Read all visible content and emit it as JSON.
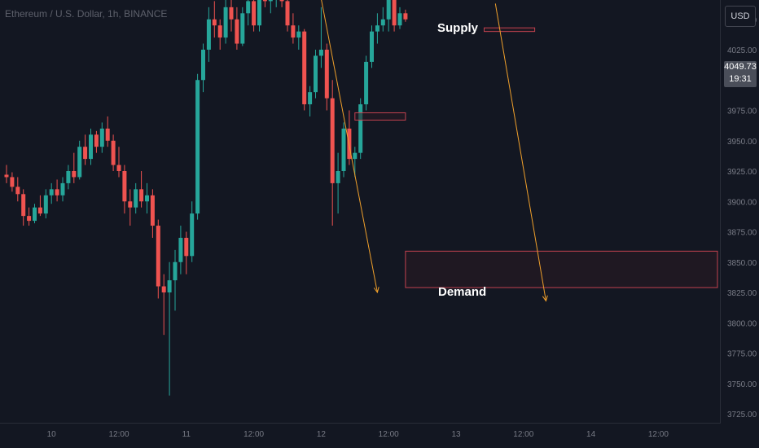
{
  "header": {
    "symbol_title": "Ethereum / U.S. Dollar, 1h, BINANCE",
    "currency_button": "USD"
  },
  "price_badge": {
    "price": "4049.73",
    "countdown": "19:31"
  },
  "zones": {
    "supply_label": "Supply",
    "demand_label": "Demand"
  },
  "colors": {
    "background": "#131722",
    "up": "#26a69a",
    "down": "#ef5350",
    "zone_border": "#c2424f",
    "zone_fill": "#2a1a22",
    "arrow": "#f0a02b",
    "grid": "#1e222d",
    "axis_text": "#787b86"
  },
  "chart_data": {
    "type": "candlestick",
    "symbol": "ETHUSD",
    "timeframe": "1h",
    "exchange": "BINANCE",
    "y_ticks": [
      3725,
      3750,
      3775,
      3800,
      3825,
      3850,
      3875,
      3900,
      3925,
      3950,
      3975,
      4000,
      4025,
      4050,
      4075
    ],
    "y_tick_labels": [
      "3725.00",
      "3750.00",
      "3775.00",
      "3800.00",
      "3825.00",
      "3850.00",
      "3875.00",
      "3900.00",
      "3925.00",
      "3950.00",
      "3975.00",
      "4000.00",
      "4025.00",
      "4050.00",
      "4075.00"
    ],
    "x_tick_labels": [
      "10",
      "12:00",
      "11",
      "12:00",
      "12",
      "12:00",
      "13",
      "12:00",
      "14",
      "12:00"
    ],
    "x_tick_bars": [
      8,
      20,
      32,
      44,
      56,
      68,
      80,
      92,
      104,
      116
    ],
    "grid": false,
    "last_price": 4049.73,
    "candles": [
      [
        3922,
        3930,
        3915,
        3920
      ],
      [
        3920,
        3924,
        3908,
        3912
      ],
      [
        3912,
        3920,
        3900,
        3906
      ],
      [
        3906,
        3910,
        3880,
        3888
      ],
      [
        3888,
        3895,
        3880,
        3884
      ],
      [
        3884,
        3898,
        3882,
        3895
      ],
      [
        3895,
        3905,
        3888,
        3890
      ],
      [
        3890,
        3910,
        3886,
        3905
      ],
      [
        3905,
        3915,
        3898,
        3910
      ],
      [
        3910,
        3918,
        3900,
        3905
      ],
      [
        3905,
        3920,
        3900,
        3915
      ],
      [
        3915,
        3930,
        3910,
        3925
      ],
      [
        3925,
        3940,
        3915,
        3920
      ],
      [
        3920,
        3950,
        3918,
        3945
      ],
      [
        3945,
        3955,
        3930,
        3935
      ],
      [
        3935,
        3960,
        3930,
        3955
      ],
      [
        3955,
        3958,
        3940,
        3945
      ],
      [
        3945,
        3965,
        3940,
        3960
      ],
      [
        3960,
        3970,
        3945,
        3950
      ],
      [
        3950,
        3955,
        3925,
        3930
      ],
      [
        3930,
        3945,
        3920,
        3925
      ],
      [
        3925,
        3930,
        3890,
        3900
      ],
      [
        3900,
        3910,
        3880,
        3895
      ],
      [
        3895,
        3915,
        3890,
        3910
      ],
      [
        3910,
        3925,
        3895,
        3900
      ],
      [
        3900,
        3915,
        3890,
        3905
      ],
      [
        3905,
        3910,
        3870,
        3880
      ],
      [
        3880,
        3885,
        3820,
        3830
      ],
      [
        3830,
        3840,
        3790,
        3825
      ],
      [
        3825,
        3850,
        3740,
        3835
      ],
      [
        3835,
        3860,
        3810,
        3850
      ],
      [
        3850,
        3880,
        3840,
        3870
      ],
      [
        3870,
        3875,
        3840,
        3855
      ],
      [
        3855,
        3900,
        3850,
        3890
      ],
      [
        3890,
        4005,
        3885,
        4000
      ],
      [
        4000,
        4030,
        3990,
        4025
      ],
      [
        4025,
        4060,
        4015,
        4050
      ],
      [
        4050,
        4065,
        4035,
        4045
      ],
      [
        4045,
        4050,
        4025,
        4035
      ],
      [
        4035,
        4070,
        4030,
        4060
      ],
      [
        4060,
        4070,
        4040,
        4050
      ],
      [
        4050,
        4060,
        4025,
        4030
      ],
      [
        4030,
        4060,
        4028,
        4055
      ],
      [
        4055,
        4075,
        4045,
        4065
      ],
      [
        4065,
        4070,
        4040,
        4045
      ],
      [
        4045,
        4080,
        4040,
        4070
      ],
      [
        4070,
        4078,
        4060,
        4065
      ],
      [
        4065,
        4075,
        4055,
        4070
      ],
      [
        4070,
        4080,
        4060,
        4072
      ],
      [
        4072,
        4075,
        4060,
        4065
      ],
      [
        4065,
        4070,
        4040,
        4045
      ],
      [
        4045,
        4055,
        4030,
        4035
      ],
      [
        4035,
        4045,
        4025,
        4040
      ],
      [
        4040,
        4042,
        3975,
        3980
      ],
      [
        3980,
        3995,
        3970,
        3990
      ],
      [
        3990,
        4025,
        3985,
        4020
      ],
      [
        4020,
        4060,
        4010,
        4025
      ],
      [
        4025,
        4030,
        3975,
        3985
      ],
      [
        3985,
        4000,
        3880,
        3915
      ],
      [
        3915,
        3940,
        3890,
        3925
      ],
      [
        3925,
        3965,
        3920,
        3960
      ],
      [
        3960,
        3975,
        3930,
        3935
      ],
      [
        3935,
        3945,
        3920,
        3940
      ],
      [
        3940,
        3985,
        3935,
        3980
      ],
      [
        3980,
        4020,
        3975,
        4015
      ],
      [
        4015,
        4045,
        4010,
        4040
      ],
      [
        4040,
        4055,
        4030,
        4045
      ],
      [
        4045,
        4060,
        4040,
        4050
      ],
      [
        4050,
        4075,
        4040,
        4070
      ],
      [
        4070,
        4072,
        4040,
        4045
      ],
      [
        4045,
        4060,
        4042,
        4055
      ],
      [
        4055,
        4058,
        4048,
        4050
      ]
    ],
    "zones": [
      {
        "name": "Supply",
        "start_bar": 56,
        "end_bar": 127,
        "top": 4083,
        "bottom": 4074
      },
      {
        "name": "Demand",
        "start_bar": 71,
        "end_bar": 127,
        "top": 3859,
        "bottom": 3829
      },
      {
        "name": "",
        "start_bar": 62,
        "end_bar": 71,
        "top": 3973,
        "bottom": 3967
      },
      {
        "name": "",
        "start_bar": 85,
        "end_bar": 94,
        "top": 4043,
        "bottom": 4040
      }
    ],
    "projection_arrows": [
      {
        "from_bar": 55.5,
        "from_price": 4079,
        "to_bar": 66,
        "to_price": 3825
      },
      {
        "from_bar": 87,
        "from_price": 4063,
        "to_bar": 96,
        "to_price": 3818
      }
    ]
  }
}
